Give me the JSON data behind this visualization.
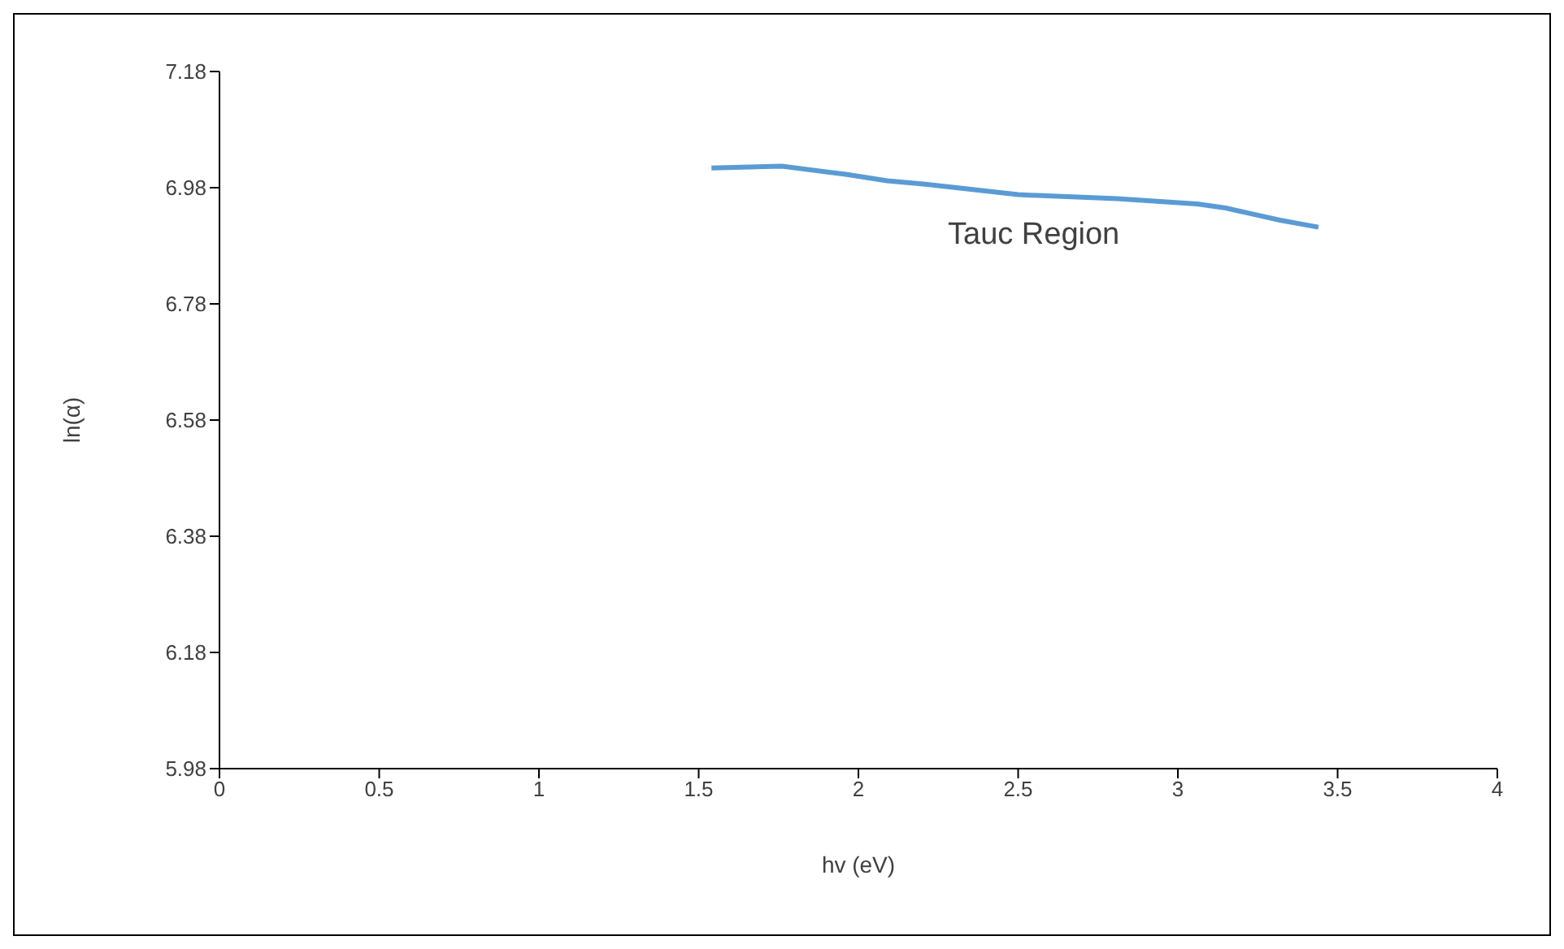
{
  "chart_data": {
    "type": "line",
    "xlabel": "hv (eV)",
    "ylabel": "ln(α)",
    "x": [
      1.54,
      1.76,
      1.96,
      2.09,
      2.21,
      2.5,
      2.81,
      3.06,
      3.15,
      3.23,
      3.32,
      3.44
    ],
    "series": [
      {
        "color": "#5b9bd5",
        "values": [
          7.014,
          7.017,
          7.003,
          6.992,
          6.986,
          6.968,
          6.961,
          6.952,
          6.945,
          6.935,
          6.924,
          6.912
        ]
      }
    ],
    "xlim": [
      0,
      4
    ],
    "xticks": [
      0,
      0.5,
      1,
      1.5,
      2,
      2.5,
      3,
      3.5,
      4
    ],
    "ylim": [
      5.98,
      7.18
    ],
    "yticks": [
      5.98,
      6.18,
      6.38,
      6.58,
      6.78,
      6.98,
      7.18
    ],
    "grid": false,
    "marker": "none",
    "line_style": "solid",
    "annotations": [
      "Tauc Region"
    ]
  }
}
